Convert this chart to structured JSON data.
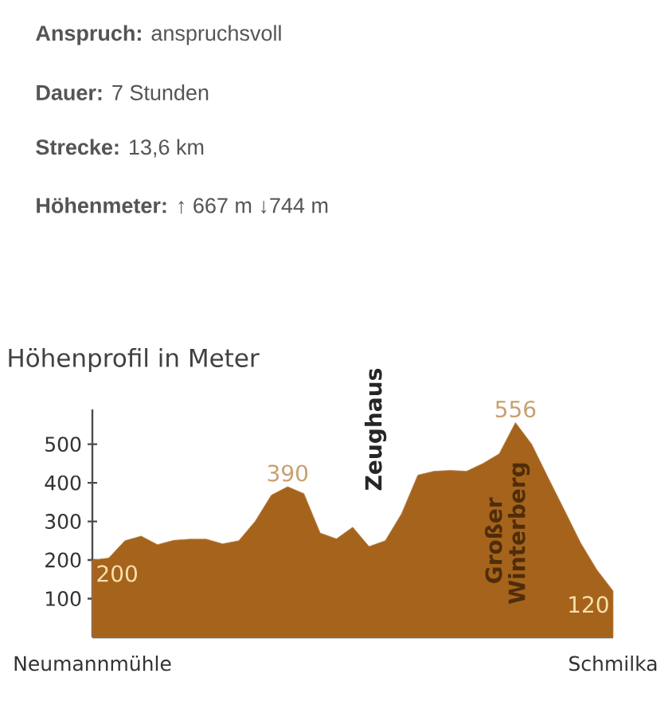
{
  "chart_data": {
    "type": "area",
    "title": "Höhenprofil in Meter",
    "annotations": [
      "**Anspruch:** anspruchsvoll",
      "**Dauer:** 7 Stunden",
      "**Strecke:** 13,6 km",
      "**Höhenmeter:** ↑ 667 m ↓744 m",
      "Zeughaus",
      "Großer Winterberg"
    ],
    "categories": [
      "Neumannmühle",
      null,
      null,
      null,
      null,
      null,
      null,
      null,
      null,
      null,
      null,
      null,
      null,
      null,
      null,
      null,
      null,
      null,
      null,
      null,
      null,
      null,
      null,
      null,
      null,
      null,
      null,
      null,
      null,
      null,
      null,
      null,
      "Schmilka"
    ],
    "values": [
      200,
      205,
      250,
      262,
      240,
      251,
      254,
      254,
      242,
      250,
      300,
      368,
      390,
      372,
      270,
      255,
      285,
      235,
      250,
      320,
      420,
      430,
      432,
      430,
      450,
      475,
      556,
      500,
      414,
      330,
      245,
      175,
      120
    ],
    "value_labels": [
      "200",
      null,
      null,
      null,
      null,
      null,
      null,
      null,
      null,
      null,
      null,
      null,
      "390",
      null,
      null,
      null,
      null,
      null,
      null,
      null,
      null,
      null,
      null,
      null,
      null,
      null,
      "556",
      null,
      null,
      null,
      null,
      null,
      "120"
    ],
    "color": "#a5631c",
    "ylim": [
      0,
      590
    ],
    "yticks": [
      100,
      200,
      300,
      400,
      500
    ],
    "grid": false
  }
}
